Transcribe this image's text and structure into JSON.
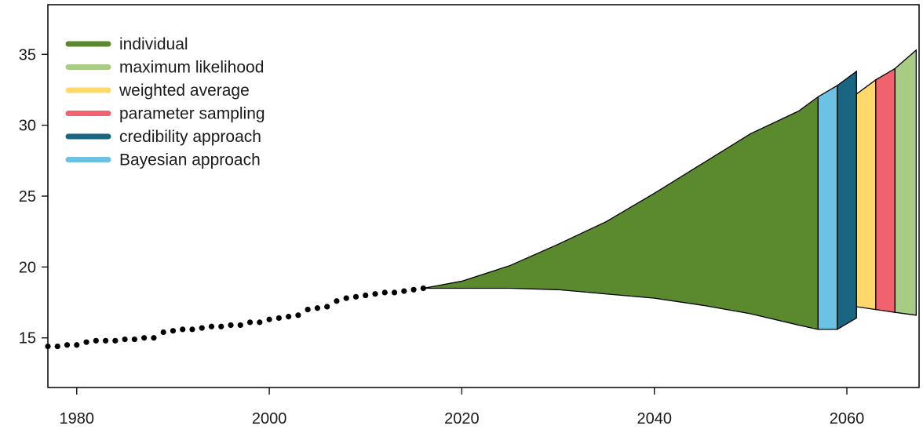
{
  "chart_data": {
    "type": "area",
    "title": "",
    "xlabel": "",
    "ylabel": "",
    "xlim": [
      1977,
      2067.5
    ],
    "ylim": [
      11.5,
      38.5
    ],
    "x_ticks": [
      1980,
      2000,
      2020,
      2040,
      2060
    ],
    "y_ticks": [
      15,
      20,
      25,
      30,
      35
    ],
    "grid": false,
    "legend_position": "top-left",
    "legend": [
      {
        "name": "individual",
        "color": "#5b8a2e"
      },
      {
        "name": "maximum likelihood",
        "color": "#a9cc85"
      },
      {
        "name": "weighted average",
        "color": "#ffd86b"
      },
      {
        "name": "parameter sampling",
        "color": "#f0626e"
      },
      {
        "name": "credibility approach",
        "color": "#1a6581"
      },
      {
        "name": "Bayesian approach",
        "color": "#6cc2e3"
      }
    ],
    "observed": {
      "x": [
        1977,
        1978,
        1979,
        1980,
        1981,
        1982,
        1983,
        1984,
        1985,
        1986,
        1987,
        1988,
        1989,
        1990,
        1991,
        1992,
        1993,
        1994,
        1995,
        1996,
        1997,
        1998,
        1999,
        2000,
        2001,
        2002,
        2003,
        2004,
        2005,
        2006,
        2007,
        2008,
        2009,
        2010,
        2011,
        2012,
        2013,
        2014,
        2015,
        2016
      ],
      "y": [
        14.4,
        14.4,
        14.5,
        14.5,
        14.7,
        14.8,
        14.8,
        14.8,
        14.9,
        14.9,
        15.0,
        15.0,
        15.4,
        15.5,
        15.6,
        15.6,
        15.7,
        15.8,
        15.8,
        15.9,
        15.9,
        16.1,
        16.1,
        16.3,
        16.4,
        16.5,
        16.6,
        17.0,
        17.1,
        17.2,
        17.6,
        17.8,
        17.9,
        18.0,
        18.1,
        18.2,
        18.2,
        18.3,
        18.4,
        18.5
      ]
    },
    "fan": {
      "name": "individual",
      "x": [
        2016,
        2020,
        2025,
        2030,
        2035,
        2040,
        2045,
        2050,
        2055,
        2057
      ],
      "upper": [
        18.5,
        19.0,
        20.1,
        21.6,
        23.2,
        25.2,
        27.3,
        29.4,
        31.0,
        32.0
      ],
      "lower": [
        18.5,
        18.5,
        18.5,
        18.4,
        18.1,
        17.8,
        17.3,
        16.7,
        15.9,
        15.6
      ]
    },
    "ranges": [
      {
        "name": "Bayesian approach",
        "x": [
          2057,
          2059
        ],
        "upper": [
          32.0,
          32.8
        ],
        "lower": [
          15.6,
          15.6
        ]
      },
      {
        "name": "credibility approach",
        "x": [
          2059,
          2061
        ],
        "upper": [
          32.8,
          33.8
        ],
        "lower": [
          15.6,
          16.4
        ]
      },
      {
        "name": "weighted average",
        "x": [
          2061,
          2063
        ],
        "upper": [
          32.2,
          33.2
        ],
        "lower": [
          17.2,
          17.0
        ]
      },
      {
        "name": "parameter sampling",
        "x": [
          2063,
          2065
        ],
        "upper": [
          33.2,
          34.0
        ],
        "lower": [
          17.0,
          16.8
        ]
      },
      {
        "name": "maximum likelihood",
        "x": [
          2065,
          2067.2
        ],
        "upper": [
          34.0,
          35.3
        ],
        "lower": [
          16.8,
          16.6
        ]
      }
    ]
  }
}
